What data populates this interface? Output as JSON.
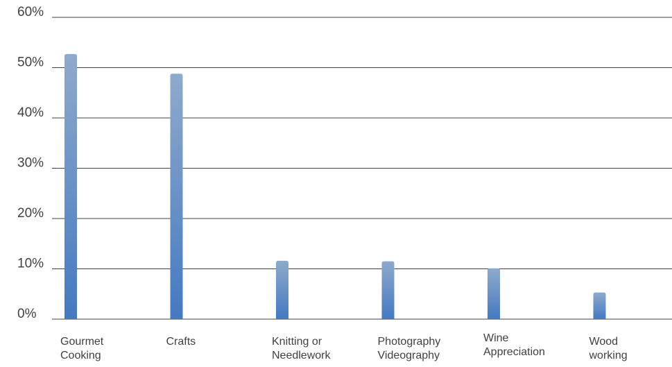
{
  "chart_data": {
    "type": "bar",
    "title": "",
    "xlabel": "",
    "ylabel": "",
    "categories": [
      [
        "Gourmet",
        "Cooking"
      ],
      [
        "Crafts"
      ],
      [
        "Knitting or",
        "Needlework"
      ],
      [
        "Photography",
        "Videography"
      ],
      [
        "Wine",
        "Appreciation"
      ],
      [
        "Wood",
        "working"
      ]
    ],
    "values": [
      52.7,
      48.8,
      11.6,
      11.5,
      10.1,
      5.3
    ],
    "ylim": [
      0,
      60
    ],
    "yticks": [
      0,
      10,
      20,
      30,
      40,
      50,
      60
    ],
    "ytick_labels": [
      "0%",
      "10%",
      "20%",
      "30%",
      "40%",
      "50%",
      "60%"
    ],
    "grid": true,
    "legend": "none",
    "colors": {
      "bar_top": "#8eaacb",
      "bar_bottom": "#4479c2",
      "grid": "#404040",
      "text": "#404040"
    }
  }
}
